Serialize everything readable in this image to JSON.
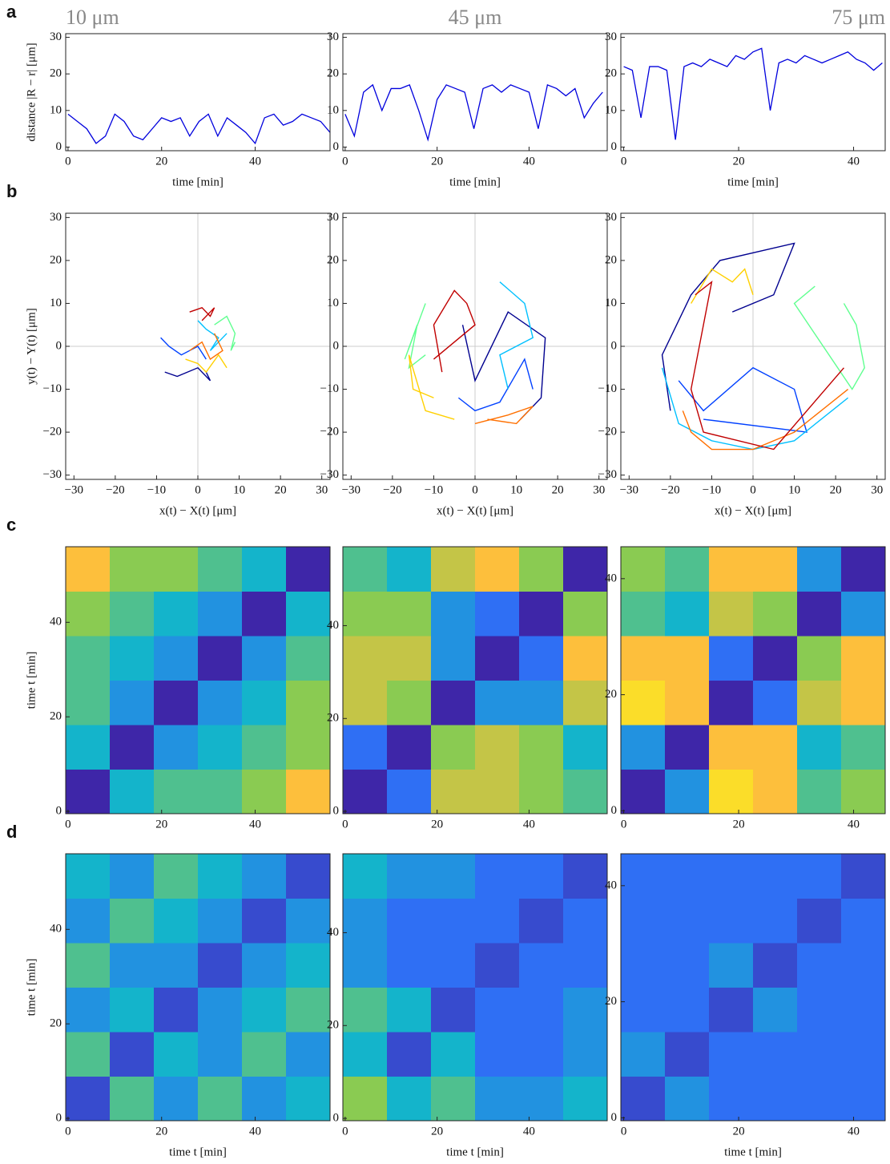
{
  "chart_data": [
    {
      "type": "line",
      "panel_label": "a",
      "title": "10 μm",
      "ylabel": "distance |R − r| [μm]",
      "xlabel": "time [min]",
      "color": "#0000dd",
      "x": [
        0,
        2,
        4,
        6,
        8,
        10,
        12,
        14,
        16,
        18,
        20,
        22,
        24,
        26,
        28,
        30,
        32,
        34,
        36,
        38,
        40,
        42,
        44,
        46,
        48,
        50,
        52,
        54,
        56
      ],
      "values": [
        9,
        7,
        5,
        1,
        3,
        9,
        7,
        3,
        2,
        5,
        8,
        7,
        8,
        3,
        7,
        9,
        3,
        8,
        6,
        4,
        1,
        8,
        9,
        6,
        7,
        9,
        8,
        7,
        4
      ],
      "xlim": [
        -0.5,
        56
      ],
      "ylim": [
        -1,
        31
      ],
      "xticks": [
        0,
        20,
        40
      ],
      "yticks": [
        0,
        10,
        20,
        30
      ]
    },
    {
      "type": "line",
      "title": "45 μm",
      "xlabel": "time [min]",
      "color": "#0000dd",
      "x": [
        0,
        2,
        4,
        6,
        8,
        10,
        12,
        14,
        16,
        18,
        20,
        22,
        24,
        26,
        28,
        30,
        32,
        34,
        36,
        38,
        40,
        42,
        44,
        46,
        48,
        50,
        52,
        54,
        56
      ],
      "values": [
        9,
        3,
        15,
        17,
        10,
        16,
        16,
        17,
        10,
        2,
        13,
        17,
        16,
        15,
        5,
        16,
        17,
        15,
        17,
        16,
        15,
        5,
        17,
        16,
        14,
        16,
        8,
        12,
        15
      ],
      "xlim": [
        -0.5,
        57
      ],
      "ylim": [
        -1,
        31
      ],
      "xticks": [
        0,
        20,
        40
      ],
      "yticks": [
        0,
        10,
        20,
        30
      ]
    },
    {
      "type": "line",
      "title": "75 μm",
      "xlabel": "time [min]",
      "color": "#0000dd",
      "x": [
        0,
        1.5,
        3,
        4.5,
        6,
        7.5,
        9,
        10.5,
        12,
        13.5,
        15,
        16.5,
        18,
        19.5,
        21,
        22.5,
        24,
        25.5,
        27,
        28.5,
        30,
        31.5,
        33,
        34.5,
        36,
        37.5,
        39,
        40.5,
        42,
        43.5,
        45
      ],
      "values": [
        22,
        21,
        8,
        22,
        22,
        21,
        2,
        22,
        23,
        22,
        24,
        23,
        22,
        25,
        24,
        26,
        27,
        10,
        23,
        24,
        23,
        25,
        24,
        23,
        24,
        25,
        26,
        24,
        23,
        21,
        23
      ],
      "xlim": [
        -0.5,
        45.5
      ],
      "ylim": [
        -1,
        31
      ],
      "xticks": [
        0,
        20,
        40
      ],
      "yticks": [
        0,
        10,
        20,
        30
      ]
    },
    {
      "type": "trajectory",
      "panel_label": "b",
      "ylabel": "y(t) − Y(t) [μm]",
      "xlabel": "x(t) − X(t) [μm]",
      "zero_lines": true,
      "xlim": [
        -32,
        32
      ],
      "ylim": [
        -31,
        31
      ],
      "xticks": [
        {
          "value": -30,
          "label": "−30"
        },
        {
          "value": -20,
          "label": "−20"
        },
        {
          "value": -10,
          "label": "−10"
        },
        0,
        10,
        20,
        30
      ],
      "yticks": [
        {
          "value": -30,
          "label": "−30"
        },
        {
          "value": -20,
          "label": "−20"
        },
        {
          "value": -10,
          "label": "−10"
        },
        0,
        10,
        20,
        30
      ],
      "series": [
        {
          "color": "#00008f",
          "x": [
            -8,
            -5,
            0,
            3,
            2
          ],
          "values": [
            -6,
            -7,
            -5,
            -8,
            -6
          ]
        },
        {
          "color": "#0040ff",
          "x": [
            -9,
            -7,
            -4,
            0,
            2
          ],
          "values": [
            2,
            0,
            -2,
            0,
            -3
          ]
        },
        {
          "color": "#00c0ff",
          "x": [
            0,
            2,
            5,
            3,
            7
          ],
          "values": [
            6,
            4,
            2,
            -1,
            3
          ]
        },
        {
          "color": "#60ff90",
          "x": [
            4,
            7,
            9,
            8,
            9
          ],
          "values": [
            5,
            7,
            3,
            -1,
            1
          ]
        },
        {
          "color": "#ffd000",
          "x": [
            7,
            5,
            2,
            0,
            -3
          ],
          "values": [
            -5,
            -2,
            -6,
            -4,
            -3
          ]
        },
        {
          "color": "#ff7000",
          "x": [
            -2,
            1,
            3,
            6,
            4
          ],
          "values": [
            -1,
            1,
            -3,
            -1,
            3
          ]
        },
        {
          "color": "#c00000",
          "x": [
            -2,
            1,
            3,
            4,
            1
          ],
          "values": [
            8,
            9,
            7,
            9,
            6
          ]
        }
      ]
    },
    {
      "type": "trajectory",
      "xlabel": "x(t) − X(t) [μm]",
      "zero_lines": true,
      "xlim": [
        -32,
        32
      ],
      "ylim": [
        -31,
        31
      ],
      "xticks": [
        {
          "value": -30,
          "label": "−30"
        },
        {
          "value": -20,
          "label": "−20"
        },
        {
          "value": -10,
          "label": "−10"
        },
        0,
        10,
        20,
        30
      ],
      "yticks": [
        {
          "value": -30,
          "label": "−30"
        },
        {
          "value": -20,
          "label": "−20"
        },
        {
          "value": -10,
          "label": "−10"
        },
        0,
        10,
        20,
        30
      ],
      "series": [
        {
          "color": "#00008f",
          "x": [
            11,
            16,
            17,
            8,
            0,
            -3
          ],
          "values": [
            -17,
            -12,
            2,
            8,
            -8,
            5
          ]
        },
        {
          "color": "#0040ff",
          "x": [
            14,
            12,
            6,
            0,
            -4
          ],
          "values": [
            -10,
            -3,
            -13,
            -15,
            -12
          ]
        },
        {
          "color": "#00c0ff",
          "x": [
            6,
            12,
            14,
            6,
            8
          ],
          "values": [
            15,
            10,
            2,
            -2,
            -10
          ]
        },
        {
          "color": "#60ff90",
          "x": [
            -12,
            -16,
            -14,
            -17,
            -12
          ],
          "values": [
            -2,
            -5,
            5,
            -3,
            10
          ]
        },
        {
          "color": "#ffd000",
          "x": [
            -10,
            -15,
            -16,
            -12,
            -5
          ],
          "values": [
            -12,
            -10,
            -2,
            -15,
            -17
          ]
        },
        {
          "color": "#ff7000",
          "x": [
            0,
            8,
            14,
            10,
            3
          ],
          "values": [
            -18,
            -16,
            -14,
            -18,
            -17
          ]
        },
        {
          "color": "#c00000",
          "x": [
            -8,
            -10,
            -5,
            -2,
            0,
            -10
          ],
          "values": [
            -6,
            5,
            13,
            10,
            5,
            -3
          ]
        }
      ]
    },
    {
      "type": "trajectory",
      "xlabel": "x(t) − X(t) [μm]",
      "zero_lines": true,
      "xlim": [
        -32,
        32
      ],
      "ylim": [
        -31,
        31
      ],
      "xticks": [
        {
          "value": -30,
          "label": "−30"
        },
        {
          "value": -20,
          "label": "−20"
        },
        {
          "value": -10,
          "label": "−10"
        },
        0,
        10,
        20,
        30
      ],
      "yticks": [
        {
          "value": -30,
          "label": "−30"
        },
        {
          "value": -20,
          "label": "−20"
        },
        {
          "value": -10,
          "label": "−10"
        },
        0,
        10,
        20,
        30
      ],
      "series": [
        {
          "color": "#00008f",
          "x": [
            -20,
            -22,
            -15,
            -8,
            10,
            5,
            -5
          ],
          "values": [
            -15,
            -2,
            12,
            20,
            24,
            12,
            8
          ]
        },
        {
          "color": "#0040ff",
          "x": [
            -18,
            -12,
            0,
            10,
            13,
            -12
          ],
          "values": [
            -8,
            -15,
            -5,
            -10,
            -20,
            -17
          ]
        },
        {
          "color": "#00c0ff",
          "x": [
            -22,
            -18,
            -10,
            0,
            10,
            23
          ],
          "values": [
            -5,
            -18,
            -22,
            -24,
            -22,
            -12
          ]
        },
        {
          "color": "#60ff90",
          "x": [
            22,
            25,
            27,
            24,
            10,
            15
          ],
          "values": [
            10,
            5,
            -5,
            -10,
            10,
            14
          ]
        },
        {
          "color": "#ffd000",
          "x": [
            -15,
            -10,
            -5,
            -2,
            0
          ],
          "values": [
            10,
            18,
            15,
            18,
            12
          ]
        },
        {
          "color": "#ff7000",
          "x": [
            -17,
            -15,
            -10,
            0,
            10,
            23
          ],
          "values": [
            -15,
            -20,
            -24,
            -24,
            -20,
            -10
          ]
        },
        {
          "color": "#c00000",
          "x": [
            -14,
            -10,
            -15,
            -12,
            5,
            22
          ],
          "values": [
            12,
            15,
            -10,
            -20,
            -24,
            -5
          ]
        }
      ]
    },
    {
      "type": "heatmap",
      "panel_label": "c",
      "ylabel": "time t [min]",
      "xlim": [
        -0.5,
        56
      ],
      "ylim": [
        -0.5,
        56
      ],
      "xticks": [
        0,
        20,
        40
      ],
      "yticks": [
        0,
        20,
        40
      ],
      "zlim": [
        0,
        1
      ],
      "colormap": [
        "#3e26a8",
        "#2f6ff4",
        "#14b4cb",
        "#8acb52",
        "#fdbf3c",
        "#f9fb15"
      ],
      "z": [
        [
          0,
          0.4,
          0.5,
          0.5,
          0.6,
          0.8
        ],
        [
          0.4,
          0,
          0.3,
          0.4,
          0.5,
          0.6
        ],
        [
          0.5,
          0.3,
          0,
          0.3,
          0.4,
          0.6
        ],
        [
          0.5,
          0.4,
          0.3,
          0,
          0.3,
          0.5
        ],
        [
          0.6,
          0.5,
          0.4,
          0.3,
          0,
          0.4
        ],
        [
          0.8,
          0.6,
          0.6,
          0.5,
          0.4,
          0
        ]
      ]
    },
    {
      "type": "heatmap",
      "xlim": [
        -0.5,
        57
      ],
      "ylim": [
        -0.5,
        57
      ],
      "xticks": [
        0,
        20,
        40
      ],
      "yticks": [
        0,
        20,
        40
      ],
      "zlim": [
        0,
        1
      ],
      "colormap": [
        "#3e26a8",
        "#2f6ff4",
        "#14b4cb",
        "#8acb52",
        "#fdbf3c",
        "#f9fb15"
      ],
      "z": [
        [
          0,
          0.2,
          0.7,
          0.7,
          0.6,
          0.5
        ],
        [
          0.2,
          0,
          0.6,
          0.7,
          0.6,
          0.4
        ],
        [
          0.7,
          0.6,
          0,
          0.3,
          0.3,
          0.7
        ],
        [
          0.7,
          0.7,
          0.3,
          0,
          0.2,
          0.8
        ],
        [
          0.6,
          0.6,
          0.3,
          0.2,
          0,
          0.6
        ],
        [
          0.5,
          0.4,
          0.7,
          0.8,
          0.6,
          0
        ]
      ]
    },
    {
      "type": "heatmap",
      "xlim": [
        -0.5,
        45.5
      ],
      "ylim": [
        -0.5,
        45.5
      ],
      "xticks": [
        0,
        20,
        40
      ],
      "yticks": [
        0,
        20,
        40
      ],
      "zlim": [
        0,
        1
      ],
      "colormap": [
        "#3e26a8",
        "#2f6ff4",
        "#14b4cb",
        "#8acb52",
        "#fdbf3c",
        "#f9fb15"
      ],
      "z": [
        [
          0,
          0.3,
          0.9,
          0.8,
          0.5,
          0.6
        ],
        [
          0.3,
          0,
          0.8,
          0.8,
          0.4,
          0.5
        ],
        [
          0.9,
          0.8,
          0,
          0.2,
          0.7,
          0.8
        ],
        [
          0.8,
          0.8,
          0.2,
          0,
          0.6,
          0.8
        ],
        [
          0.5,
          0.4,
          0.7,
          0.6,
          0,
          0.3
        ],
        [
          0.6,
          0.5,
          0.8,
          0.8,
          0.3,
          0
        ]
      ]
    },
    {
      "type": "heatmap",
      "panel_label": "d",
      "ylabel": "time t [min]",
      "xlabel": "time t [min]",
      "xlim": [
        -0.5,
        56
      ],
      "ylim": [
        -0.5,
        56
      ],
      "xticks": [
        0,
        20,
        40
      ],
      "yticks": [
        0,
        20,
        40
      ],
      "zlim": [
        0,
        1
      ],
      "colormap": [
        "#3e26a8",
        "#2f6ff4",
        "#14b4cb",
        "#8acb52",
        "#fdbf3c",
        "#f9fb15"
      ],
      "z": [
        [
          0.1,
          0.5,
          0.3,
          0.5,
          0.3,
          0.4
        ],
        [
          0.5,
          0.1,
          0.4,
          0.3,
          0.5,
          0.3
        ],
        [
          0.3,
          0.4,
          0.1,
          0.3,
          0.4,
          0.5
        ],
        [
          0.5,
          0.3,
          0.3,
          0.1,
          0.3,
          0.4
        ],
        [
          0.3,
          0.5,
          0.4,
          0.3,
          0.1,
          0.3
        ],
        [
          0.4,
          0.3,
          0.5,
          0.4,
          0.3,
          0.1
        ]
      ]
    },
    {
      "type": "heatmap",
      "xlabel": "time t [min]",
      "xlim": [
        -0.5,
        57
      ],
      "ylim": [
        -0.5,
        57
      ],
      "xticks": [
        0,
        20,
        40
      ],
      "yticks": [
        0,
        20,
        40
      ],
      "zlim": [
        0,
        1
      ],
      "colormap": [
        "#3e26a8",
        "#2f6ff4",
        "#14b4cb",
        "#8acb52",
        "#fdbf3c",
        "#f9fb15"
      ],
      "z": [
        [
          0.6,
          0.4,
          0.5,
          0.3,
          0.3,
          0.4
        ],
        [
          0.4,
          0.1,
          0.4,
          0.2,
          0.2,
          0.3
        ],
        [
          0.5,
          0.4,
          0.1,
          0.2,
          0.2,
          0.3
        ],
        [
          0.3,
          0.2,
          0.2,
          0.1,
          0.2,
          0.2
        ],
        [
          0.3,
          0.2,
          0.2,
          0.2,
          0.1,
          0.2
        ],
        [
          0.4,
          0.3,
          0.3,
          0.2,
          0.2,
          0.1
        ]
      ]
    },
    {
      "type": "heatmap",
      "xlabel": "time t [min]",
      "xlim": [
        -0.5,
        45.5
      ],
      "ylim": [
        -0.5,
        45.5
      ],
      "xticks": [
        0,
        20,
        40
      ],
      "yticks": [
        0,
        20,
        40
      ],
      "zlim": [
        0,
        1
      ],
      "colormap": [
        "#3e26a8",
        "#2f6ff4",
        "#14b4cb",
        "#8acb52",
        "#fdbf3c",
        "#f9fb15"
      ],
      "z": [
        [
          0.1,
          0.3,
          0.2,
          0.2,
          0.2,
          0.2
        ],
        [
          0.3,
          0.1,
          0.2,
          0.2,
          0.2,
          0.2
        ],
        [
          0.2,
          0.2,
          0.1,
          0.3,
          0.2,
          0.2
        ],
        [
          0.2,
          0.2,
          0.3,
          0.1,
          0.2,
          0.2
        ],
        [
          0.2,
          0.2,
          0.2,
          0.2,
          0.1,
          0.2
        ],
        [
          0.2,
          0.2,
          0.2,
          0.2,
          0.2,
          0.1
        ]
      ]
    }
  ]
}
